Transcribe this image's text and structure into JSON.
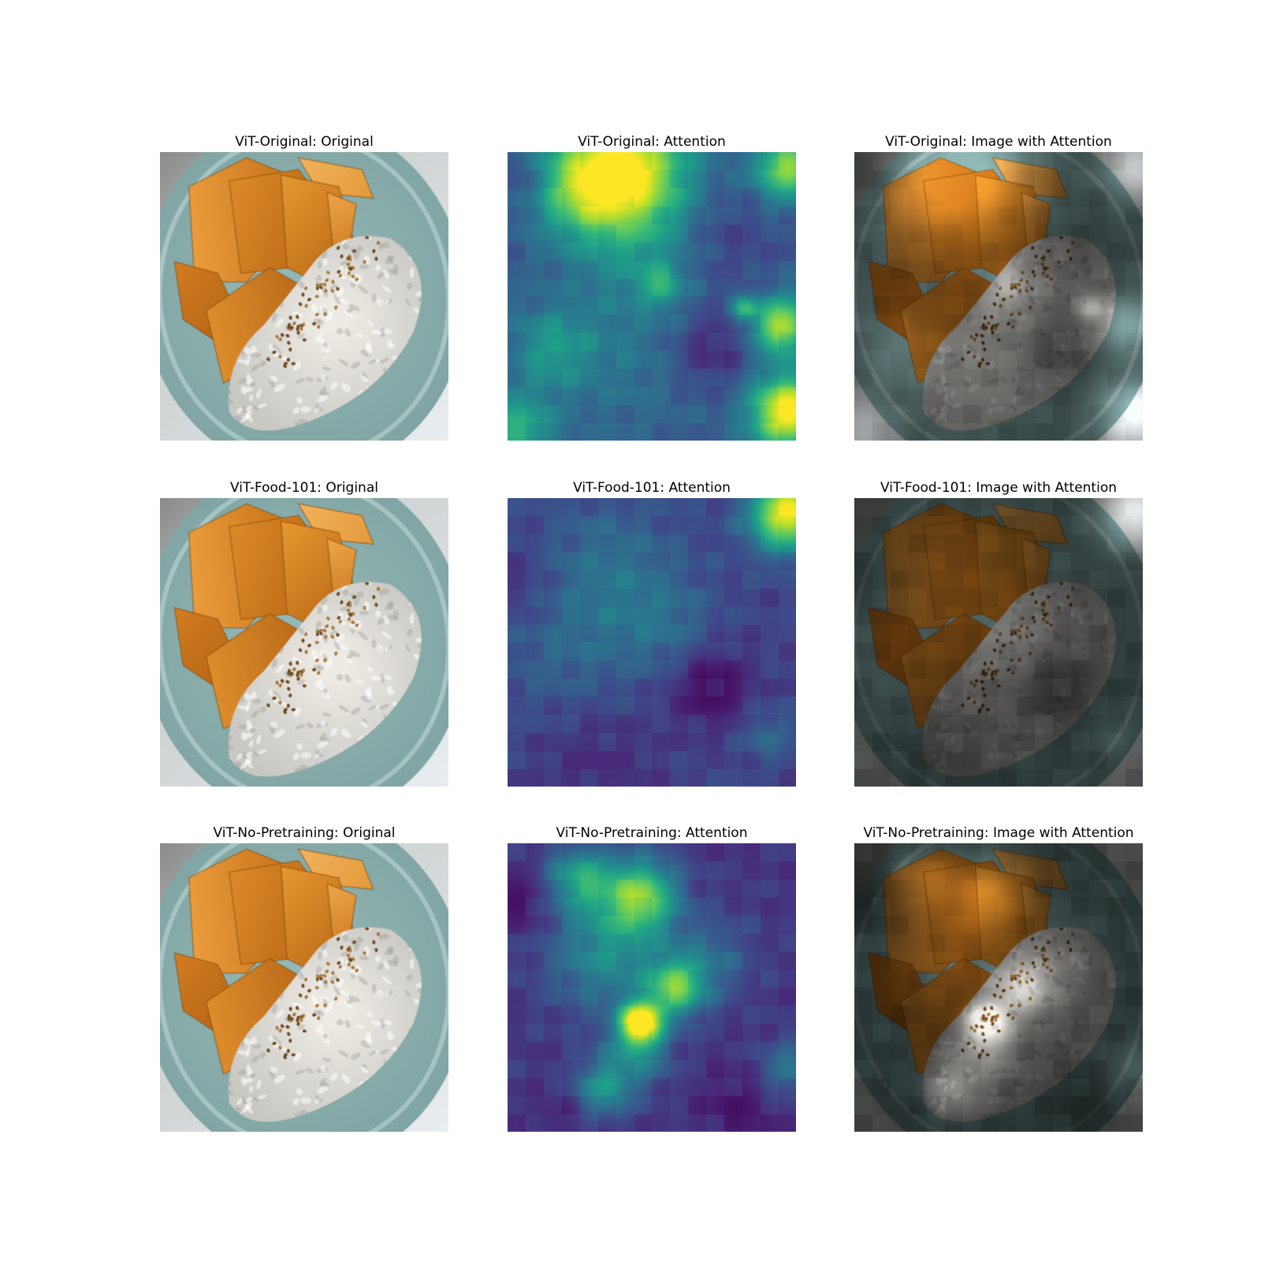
{
  "panels": [
    {
      "title": "ViT-Original: Original",
      "kind": "photo",
      "model": 0
    },
    {
      "title": "ViT-Original: Attention",
      "kind": "attention",
      "model": 0
    },
    {
      "title": "ViT-Original: Image with Attention",
      "kind": "overlay",
      "model": 0
    },
    {
      "title": "ViT-Food-101: Original",
      "kind": "photo",
      "model": 1
    },
    {
      "title": "ViT-Food-101: Attention",
      "kind": "attention",
      "model": 1
    },
    {
      "title": "ViT-Food-101: Image with Attention",
      "kind": "overlay",
      "model": 1
    },
    {
      "title": "ViT-No-Pretraining: Original",
      "kind": "photo",
      "model": 2
    },
    {
      "title": "ViT-No-Pretraining: Attention",
      "kind": "attention",
      "model": 2
    },
    {
      "title": "ViT-No-Pretraining: Image with Attention",
      "kind": "overlay",
      "model": 2
    }
  ],
  "colormap": "viridis"
}
